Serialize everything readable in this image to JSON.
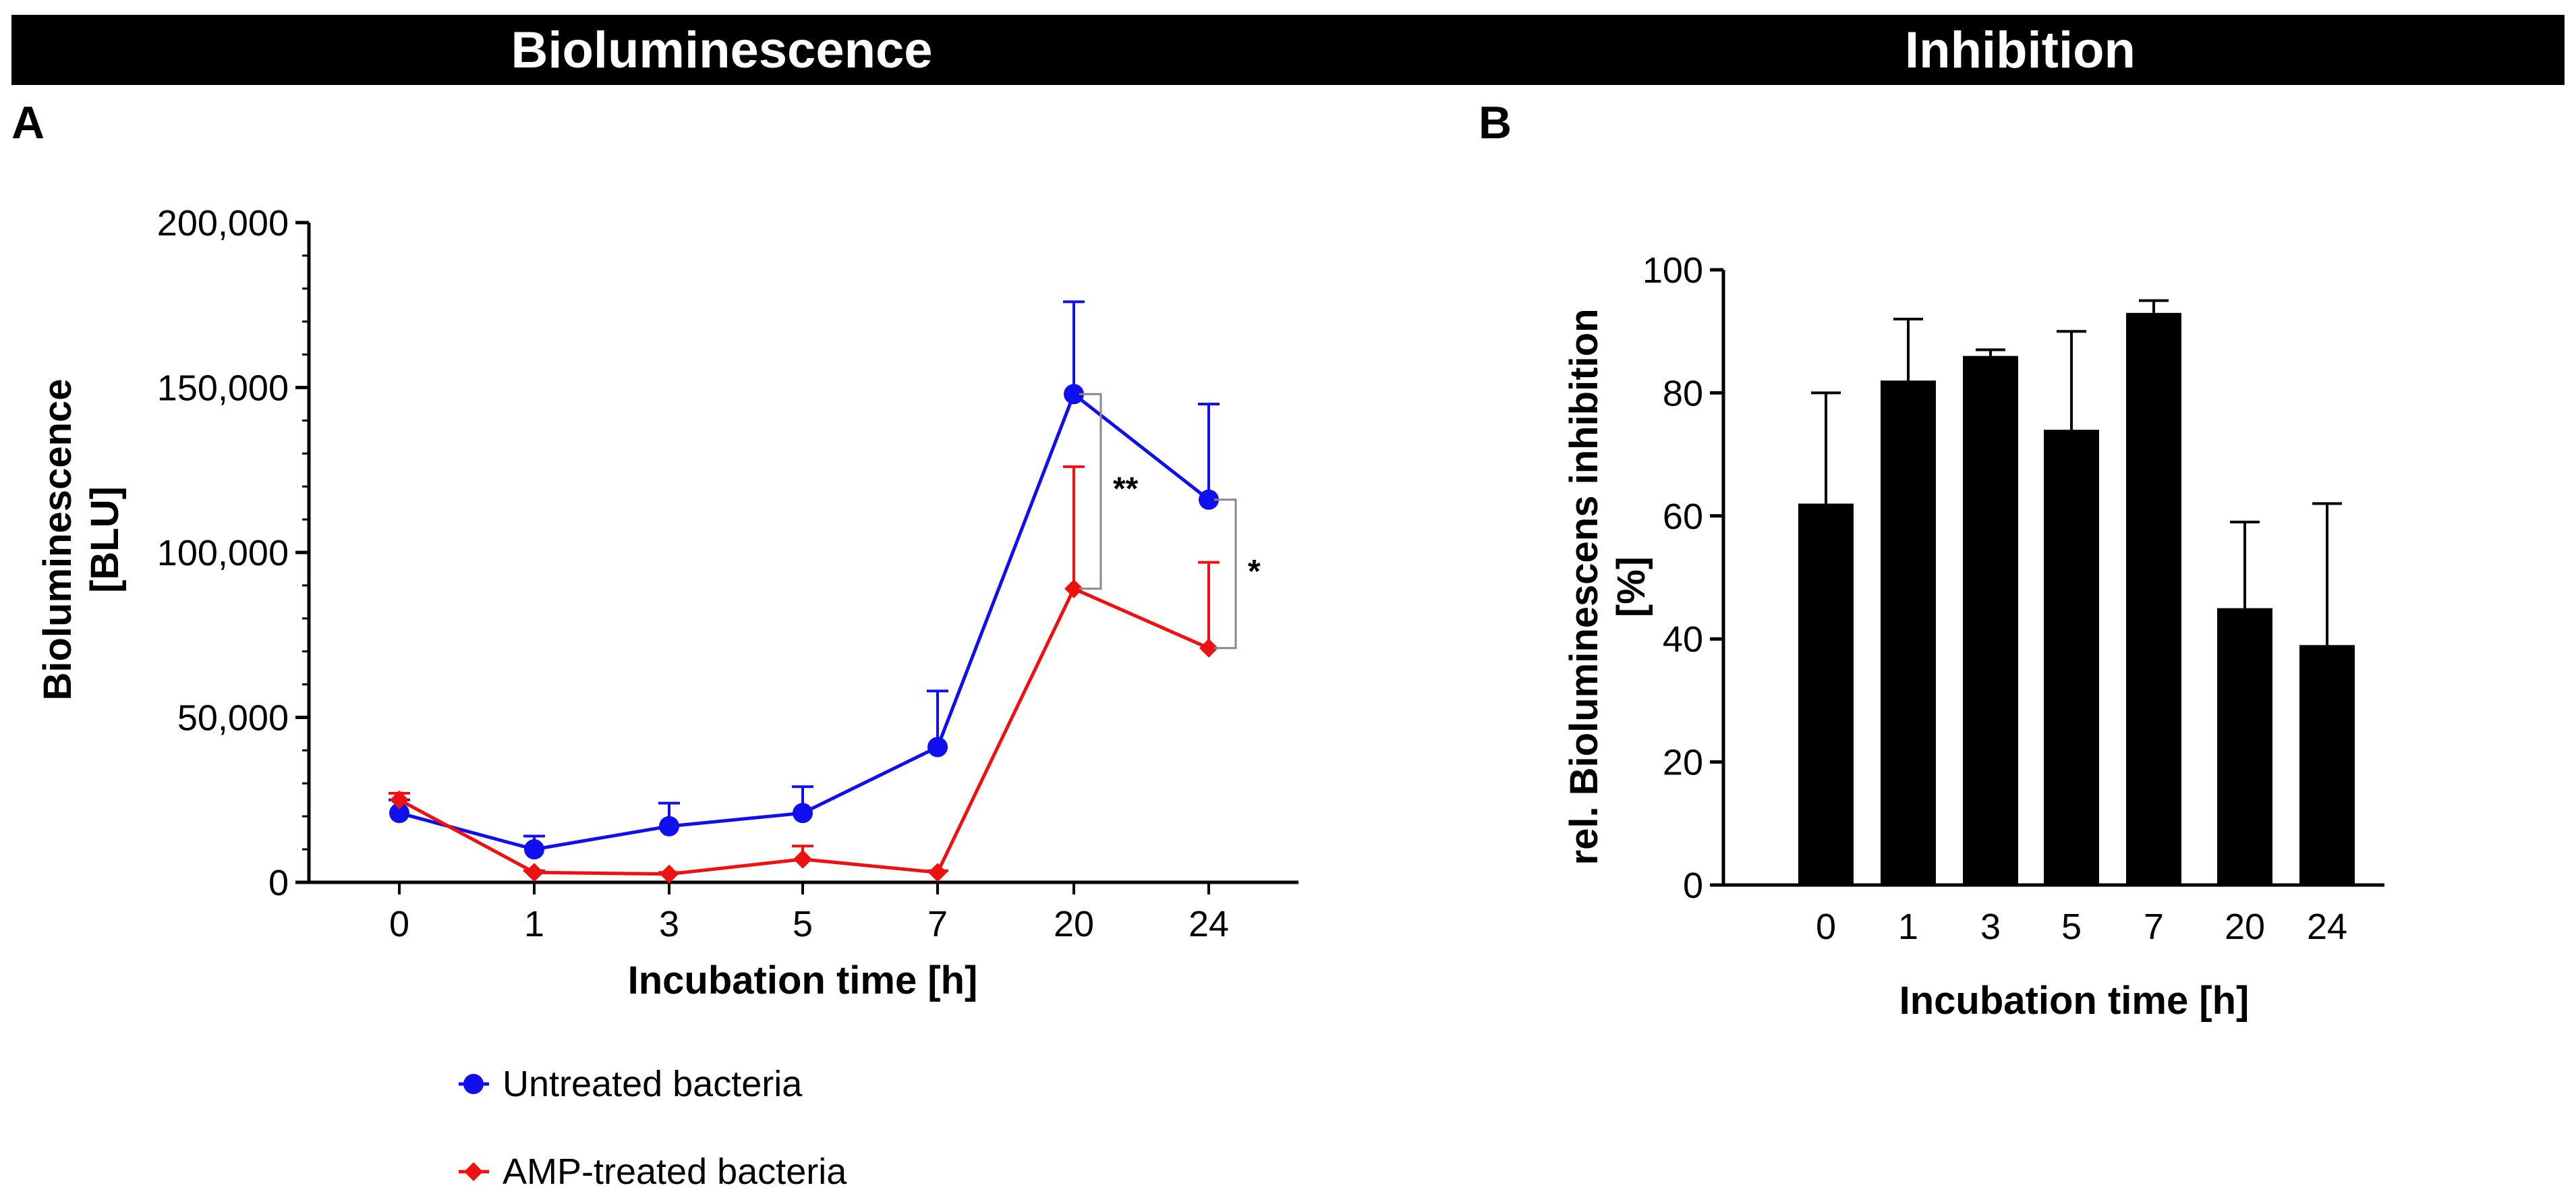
{
  "headers": {
    "left": "Bioluminescence",
    "right": "Inhibition"
  },
  "colors": {
    "header_bg": "#000000",
    "header_text": "#ffffff",
    "untreated": "#1010ee",
    "treated": "#ee1111",
    "bars": "#000000",
    "bracket": "#888888"
  },
  "chart_data": [
    {
      "panel_label": "A",
      "type": "line",
      "title": "",
      "xlabel": "Incubation time [h]",
      "ylabel_line1": "Bioluminescence",
      "ylabel_line2": "[BLU]",
      "categories": [
        "0",
        "1",
        "3",
        "5",
        "7",
        "20",
        "24"
      ],
      "ylim": [
        0,
        200000
      ],
      "yticks": [
        0,
        50000,
        100000,
        150000,
        200000
      ],
      "ytick_labels": [
        "0",
        "50,000",
        "100,000",
        "150,000",
        "200,000"
      ],
      "minor_ticks_per_major": 5,
      "series": [
        {
          "name": "Untreated bacteria",
          "marker": "circle",
          "color": "#1010ee",
          "values": [
            21000,
            10000,
            17000,
            21000,
            41000,
            148000,
            116000
          ],
          "error_upper": [
            25000,
            14000,
            24000,
            29000,
            58000,
            176000,
            145000
          ]
        },
        {
          "name": "AMP-treated bacteria",
          "marker": "diamond",
          "color": "#ee1111",
          "values": [
            25000,
            3000,
            2500,
            7000,
            3000,
            89000,
            71000
          ],
          "error_upper": [
            27000,
            3500,
            3000,
            11000,
            3500,
            126000,
            97000
          ]
        }
      ],
      "significance": [
        {
          "category": "20",
          "from": 148000,
          "to": 89000,
          "label": "**"
        },
        {
          "category": "24",
          "from": 116000,
          "to": 71000,
          "label": "*"
        }
      ],
      "legend_position": "bottom"
    },
    {
      "panel_label": "B",
      "type": "bar",
      "title": "",
      "xlabel": "Incubation time [h]",
      "ylabel_line1": "rel. Bioluminescens inhibition",
      "ylabel_line2": "[%]",
      "categories": [
        "0",
        "1",
        "3",
        "5",
        "7",
        "20",
        "24"
      ],
      "values": [
        62,
        82,
        86,
        74,
        93,
        45,
        39
      ],
      "error_upper": [
        80,
        92,
        87,
        90,
        95,
        59,
        62
      ],
      "ylim": [
        0,
        100
      ],
      "yticks": [
        0,
        20,
        40,
        60,
        80,
        100
      ],
      "ytick_labels": [
        "0",
        "20",
        "40",
        "60",
        "80",
        "100"
      ]
    }
  ]
}
